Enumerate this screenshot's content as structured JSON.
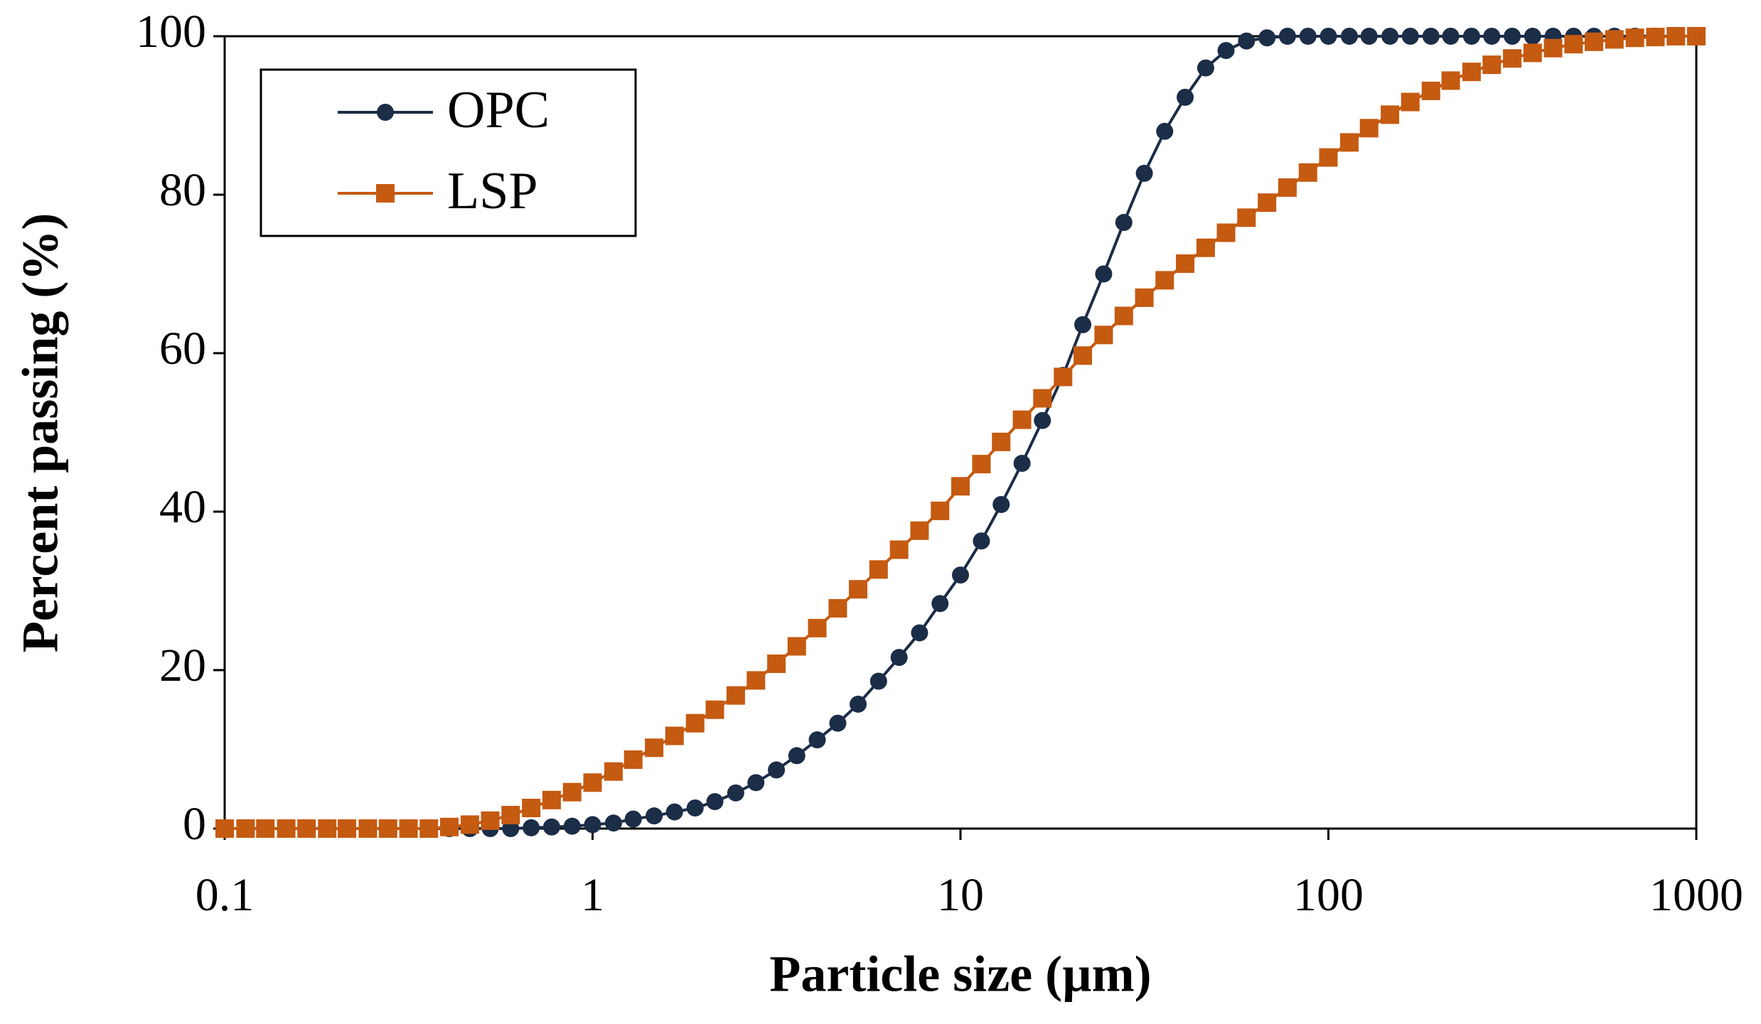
{
  "chart_data": {
    "type": "line",
    "xlabel": "Particle size (µm)",
    "ylabel": "Percent passing (%)",
    "x": [
      0.1,
      0.114,
      0.129,
      0.147,
      0.167,
      0.19,
      0.215,
      0.245,
      0.278,
      0.316,
      0.359,
      0.408,
      0.464,
      0.527,
      0.599,
      0.681,
      0.774,
      0.88,
      1,
      1.14,
      1.29,
      1.47,
      1.67,
      1.9,
      2.15,
      2.45,
      2.78,
      3.16,
      3.59,
      4.08,
      4.64,
      5.27,
      5.99,
      6.81,
      7.74,
      8.8,
      10,
      11.4,
      12.9,
      14.7,
      16.7,
      19,
      21.5,
      24.5,
      27.8,
      31.6,
      35.9,
      40.8,
      46.4,
      52.7,
      59.9,
      68.1,
      77.4,
      88,
      100,
      114,
      129,
      147,
      167,
      190,
      215,
      245,
      278,
      316,
      359,
      408,
      464,
      527,
      599,
      681,
      774,
      880,
      1000
    ],
    "series": [
      {
        "name": "OPC",
        "color": "#1b2d47",
        "marker": "circle",
        "values": [
          0,
          0,
          0,
          0,
          0,
          0,
          0,
          0,
          0,
          0,
          0,
          0,
          0,
          0,
          0,
          0.1,
          0.2,
          0.3,
          0.5,
          0.7,
          1.2,
          1.6,
          2.1,
          2.6,
          3.4,
          4.5,
          5.8,
          7.4,
          9.2,
          11.2,
          13.3,
          15.7,
          18.6,
          21.6,
          24.7,
          28.4,
          32,
          36.3,
          40.9,
          46.1,
          51.5,
          57.2,
          63.6,
          70,
          76.5,
          82.7,
          88,
          92.3,
          96,
          98.2,
          99.4,
          99.8,
          100,
          100,
          100,
          100,
          100,
          100,
          100,
          100,
          100,
          100,
          100,
          100,
          100,
          100,
          100,
          100,
          100,
          100,
          100,
          100,
          100
        ]
      },
      {
        "name": "LSP",
        "color": "#c55a11",
        "marker": "square",
        "values": [
          0,
          0,
          0,
          0,
          0,
          0,
          0,
          0,
          0,
          0,
          0,
          0.2,
          0.5,
          1,
          1.7,
          2.6,
          3.6,
          4.6,
          5.8,
          7.2,
          8.7,
          10.2,
          11.7,
          13.3,
          15,
          16.8,
          18.7,
          20.8,
          23,
          25.3,
          27.8,
          30.2,
          32.7,
          35.2,
          37.6,
          40.1,
          43.2,
          46,
          48.8,
          51.6,
          54.3,
          57,
          59.7,
          62.3,
          64.7,
          67,
          69.2,
          71.3,
          73.3,
          75.2,
          77.1,
          79,
          80.9,
          82.8,
          84.7,
          86.6,
          88.4,
          90.1,
          91.7,
          93.1,
          94.4,
          95.5,
          96.4,
          97.2,
          97.9,
          98.5,
          99,
          99.3,
          99.6,
          99.8,
          99.9,
          100,
          100
        ]
      }
    ],
    "xlim": [
      0.1,
      1000
    ],
    "xticks": [
      0.1,
      1,
      10,
      100,
      1000
    ],
    "xscale": "log",
    "ylim": [
      0,
      100
    ],
    "yticks": [
      0,
      20,
      40,
      60,
      80,
      100
    ],
    "grid": false,
    "legend": "upper left"
  }
}
